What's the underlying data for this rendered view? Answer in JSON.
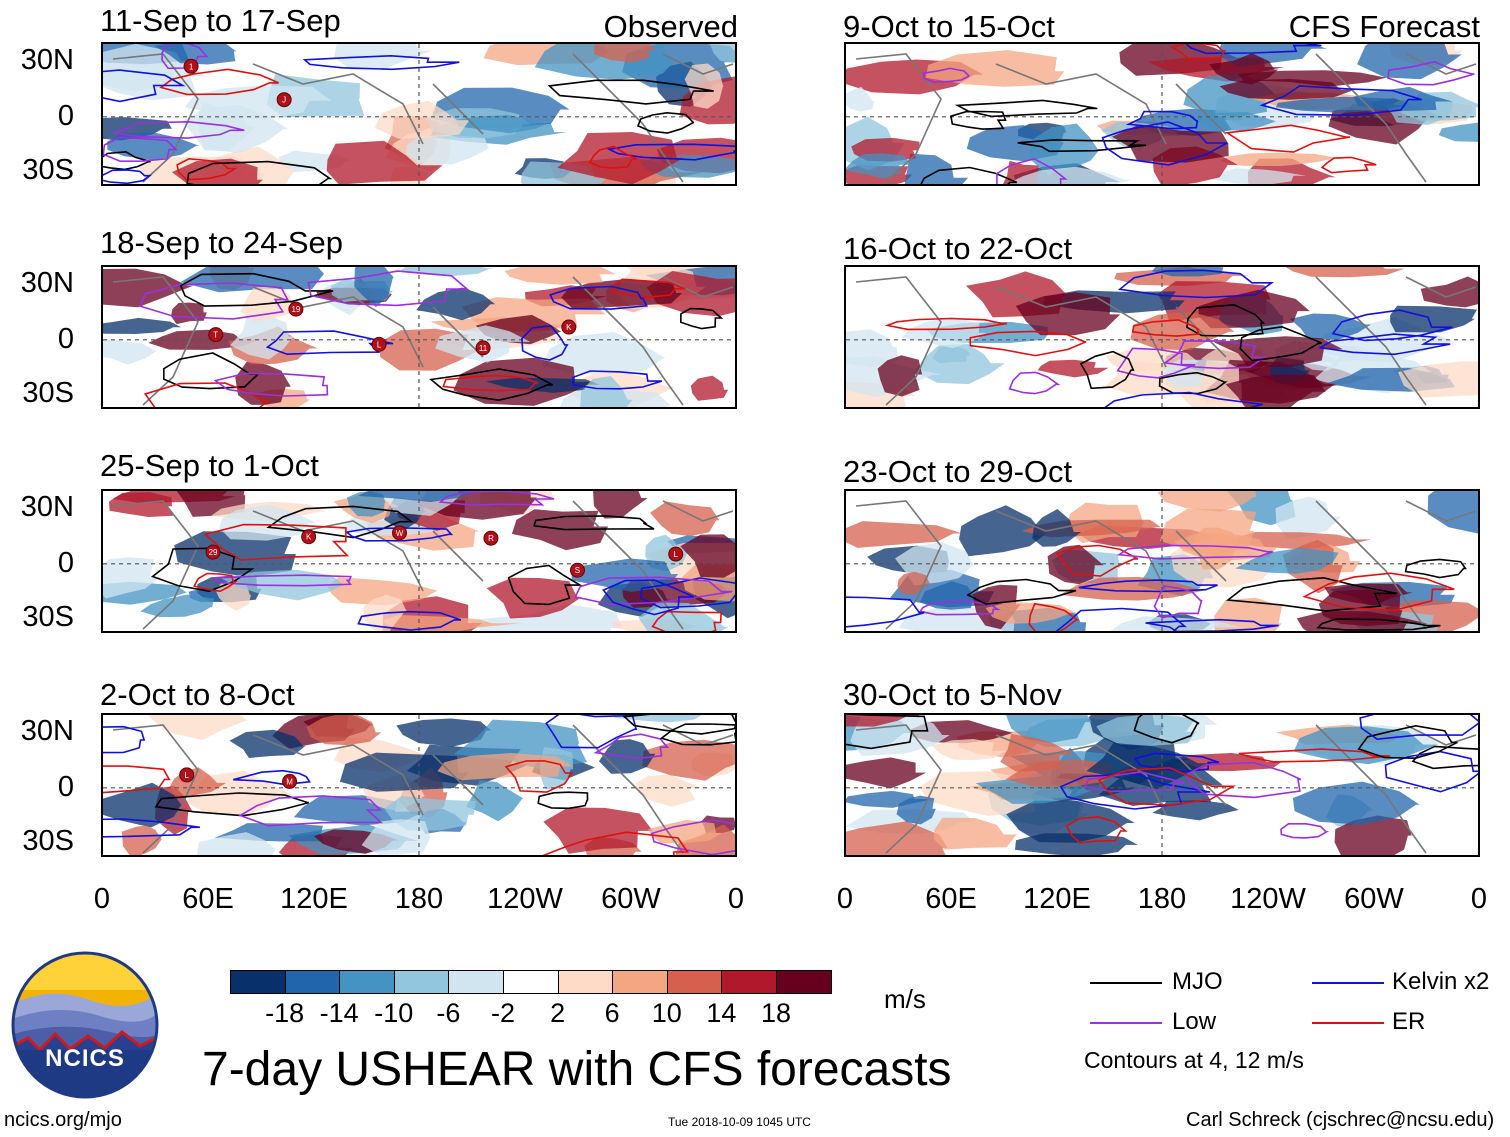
{
  "figure": {
    "title": "7-day USHEAR with CFS forecasts",
    "observed_label": "Observed",
    "forecast_label": "CFS Forecast",
    "footer_left": "ncics.org/mjo",
    "footer_center": "Tue 2018-10-09 1045 UTC",
    "footer_right": "Carl Schreck (cjschrec@ncsu.edu)",
    "logo_text": "NCICS"
  },
  "panels": {
    "observed": [
      {
        "title": "11-Sep to 17-Sep",
        "storms": [
          "1",
          "J"
        ]
      },
      {
        "title": "18-Sep to 24-Sep",
        "storms": [
          "T",
          "19",
          "L",
          "11",
          "K"
        ]
      },
      {
        "title": "25-Sep to 1-Oct",
        "storms": [
          "29",
          "K",
          "W",
          "R",
          "S",
          "L"
        ]
      },
      {
        "title": "2-Oct to 8-Oct",
        "storms": [
          "L",
          "M"
        ]
      }
    ],
    "forecast": [
      {
        "title": "9-Oct to 15-Oct"
      },
      {
        "title": "16-Oct to 22-Oct"
      },
      {
        "title": "23-Oct to 29-Oct"
      },
      {
        "title": "30-Oct to 5-Nov"
      }
    ]
  },
  "axes": {
    "y_ticks": [
      "30N",
      "0",
      "30S"
    ],
    "x_ticks": [
      "0",
      "60E",
      "120E",
      "180",
      "120W",
      "60W",
      "0"
    ]
  },
  "colorbar": {
    "unit": "m/s",
    "labels": [
      "-18",
      "-14",
      "-10",
      "-6",
      "-2",
      "2",
      "6",
      "10",
      "14",
      "18"
    ],
    "colors": [
      "#08306b",
      "#2166ac",
      "#4393c3",
      "#92c5de",
      "#d1e5f0",
      "#ffffff",
      "#fddbc7",
      "#f4a582",
      "#d6604d",
      "#b2182b",
      "#67001f"
    ]
  },
  "legend": {
    "mjo": "MJO",
    "kelvin": "Kelvin x2",
    "low": "Low",
    "er": "ER",
    "note": "Contours at 4, 12 m/s",
    "mjo_color": "#000000",
    "kelvin_color": "#1010e0",
    "low_color": "#9a30e0",
    "er_color": "#e01010"
  }
}
